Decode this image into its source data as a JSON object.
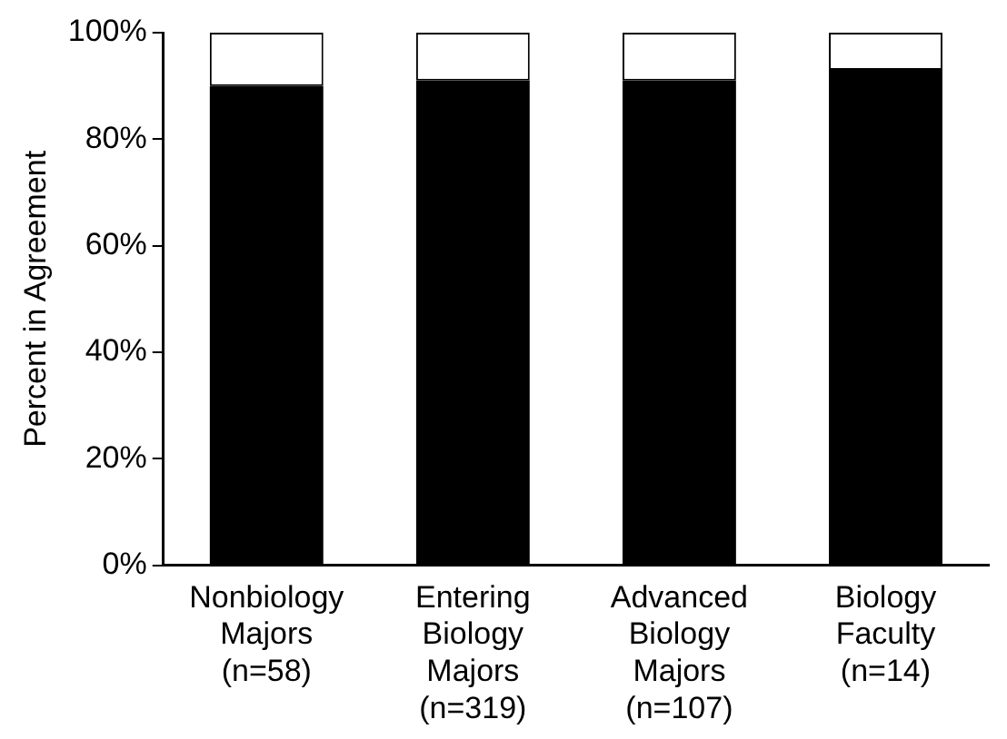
{
  "chart_data": {
    "type": "bar",
    "stacked": true,
    "ylabel": "Percent in Agreement",
    "categories": [
      "Nonbiology\nMajors\n(n=58)",
      "Entering\nBiology\nMajors\n(n=319)",
      "Advanced\nBiology\nMajors\n(n=107)",
      "Biology\nFaculty\n(n=14)"
    ],
    "series": [
      {
        "color": "#000000",
        "values": [
          90,
          91,
          91,
          93
        ]
      },
      {
        "color": "#ffffff",
        "values": [
          10,
          9,
          9,
          7
        ]
      }
    ],
    "ylim": [
      0,
      100
    ],
    "yticks": [
      {
        "value": 0,
        "label": "0%"
      },
      {
        "value": 20,
        "label": "20%"
      },
      {
        "value": 40,
        "label": "40%"
      },
      {
        "value": 60,
        "label": "60%"
      },
      {
        "value": 80,
        "label": "80%"
      },
      {
        "value": 100,
        "label": "100%"
      }
    ],
    "grid": false,
    "legend": false
  }
}
